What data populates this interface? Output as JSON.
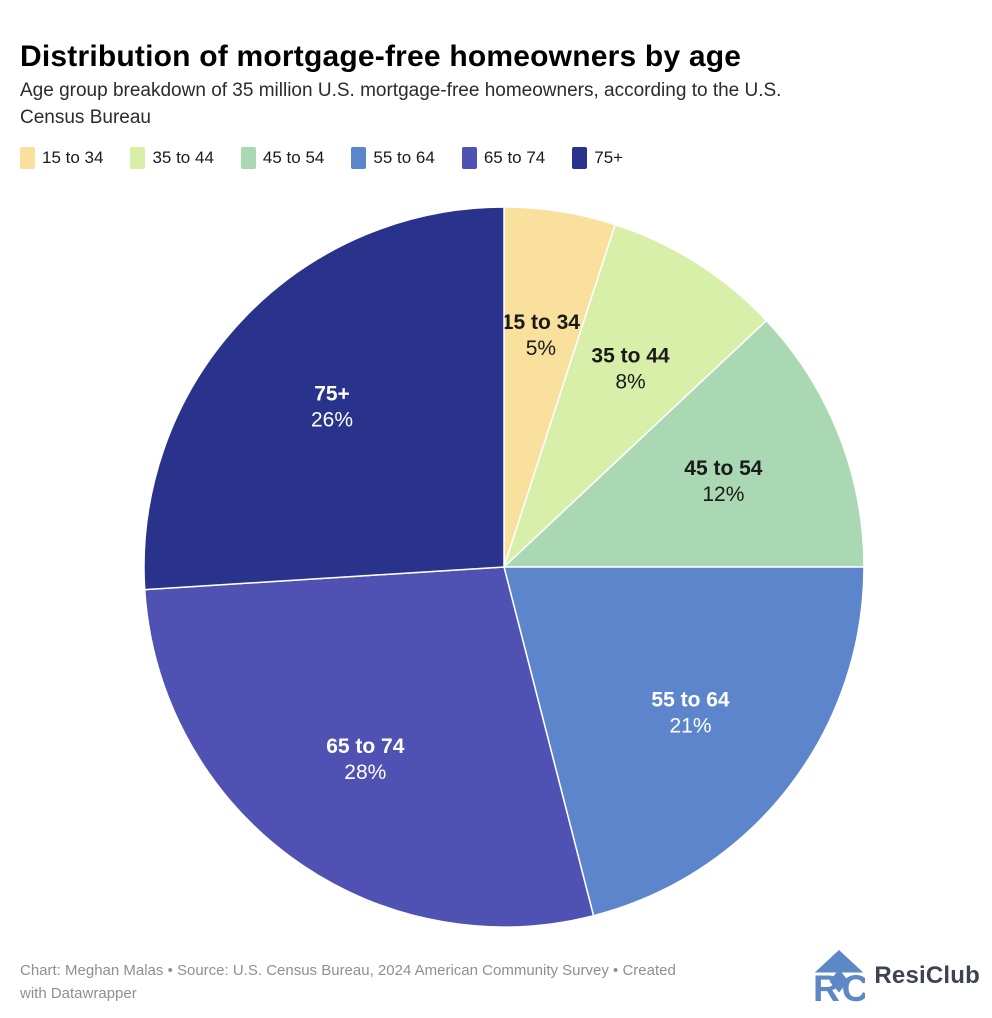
{
  "header": {
    "title": "Distribution of mortgage-free homeowners by age",
    "subtitle_lines": [
      "Age group breakdown of 35 million U.S. mortgage-free homeowners, according to the U.S.",
      "Census Bureau"
    ]
  },
  "chart_data": {
    "type": "pie",
    "title": "Distribution of mortgage-free homeowners by age",
    "subtitle": "Age group breakdown of 35 million U.S. mortgage-free homeowners, according to the U.S. Census Bureau",
    "unit": "%",
    "direction": "clockwise",
    "start_angle_deg": 0,
    "legend_position": "top-left",
    "labels": "inside",
    "slices": [
      {
        "label": "15 to 34",
        "value": 5,
        "color": "#F9E09D",
        "label_color": "#1a1a1a"
      },
      {
        "label": "35 to 44",
        "value": 8,
        "color": "#D7EFA9",
        "label_color": "#1a1a1a"
      },
      {
        "label": "45 to 54",
        "value": 12,
        "color": "#A9D8B2",
        "label_color": "#1a1a1a"
      },
      {
        "label": "55 to 64",
        "value": 21,
        "color": "#5C85CB",
        "label_color": "#ffffff"
      },
      {
        "label": "65 to 74",
        "value": 28,
        "color": "#4F52B2",
        "label_color": "#ffffff"
      },
      {
        "label": "75+",
        "value": 26,
        "color": "#2A338C",
        "label_color": "#ffffff"
      }
    ]
  },
  "footer": {
    "credit_lines": [
      "Chart: Meghan Malas • Source: U.S. Census Bureau, 2024 American Community Survey • Created",
      "with Datawrapper"
    ],
    "logo_text": "ResiClub",
    "logo_color": "#5c89c5"
  }
}
